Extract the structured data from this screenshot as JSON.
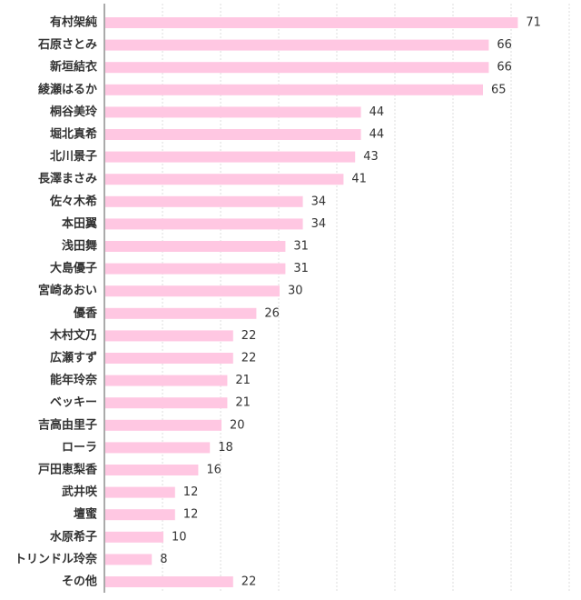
{
  "chart_data": {
    "type": "bar",
    "orientation": "horizontal",
    "title": "",
    "xlabel": "",
    "ylabel": "",
    "xlim": [
      0,
      80
    ],
    "grid": true,
    "bar_color": "#ffc7e2",
    "categories": [
      "有村架純",
      "石原さとみ",
      "新垣結衣",
      "綾瀬はるか",
      "桐谷美玲",
      "堀北真希",
      "北川景子",
      "長澤まさみ",
      "佐々木希",
      "本田翼",
      "浅田舞",
      "大島優子",
      "宮崎あおい",
      "優香",
      "木村文乃",
      "広瀬すず",
      "能年玲奈",
      "ベッキー",
      "吉高由里子",
      "ローラ",
      "戸田恵梨香",
      "武井咲",
      "壇蜜",
      "水原希子",
      "トリンドル玲奈",
      "その他"
    ],
    "values": [
      71,
      66,
      66,
      65,
      44,
      44,
      43,
      41,
      34,
      34,
      31,
      31,
      30,
      26,
      22,
      22,
      21,
      21,
      20,
      18,
      16,
      12,
      12,
      10,
      8,
      22
    ]
  }
}
